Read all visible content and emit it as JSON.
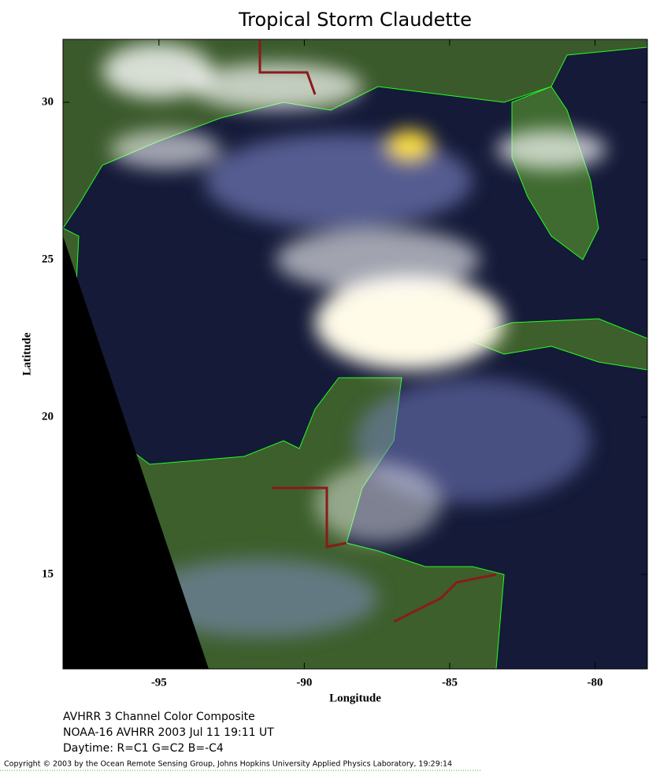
{
  "title": "Tropical Storm Claudette",
  "xlabel": "Longitude",
  "ylabel": "Latitude",
  "xlim": [
    -98.3,
    -78.2
  ],
  "ylim": [
    12,
    32
  ],
  "xticks": [
    -95,
    -90,
    -85,
    -80
  ],
  "yticks": [
    15,
    20,
    25,
    30
  ],
  "captions": [
    "AVHRR 3 Channel Color Composite",
    "NOAA-16 AVHRR 2003 Jul 11 19:11 UT",
    "Daytime: R=C1 G=C2 B=-C4"
  ],
  "copyright": "Copyright © 2003 by the Ocean Remote Sensing Group, Johns Hopkins University Applied Physics Laboratory, 19:29:14"
}
